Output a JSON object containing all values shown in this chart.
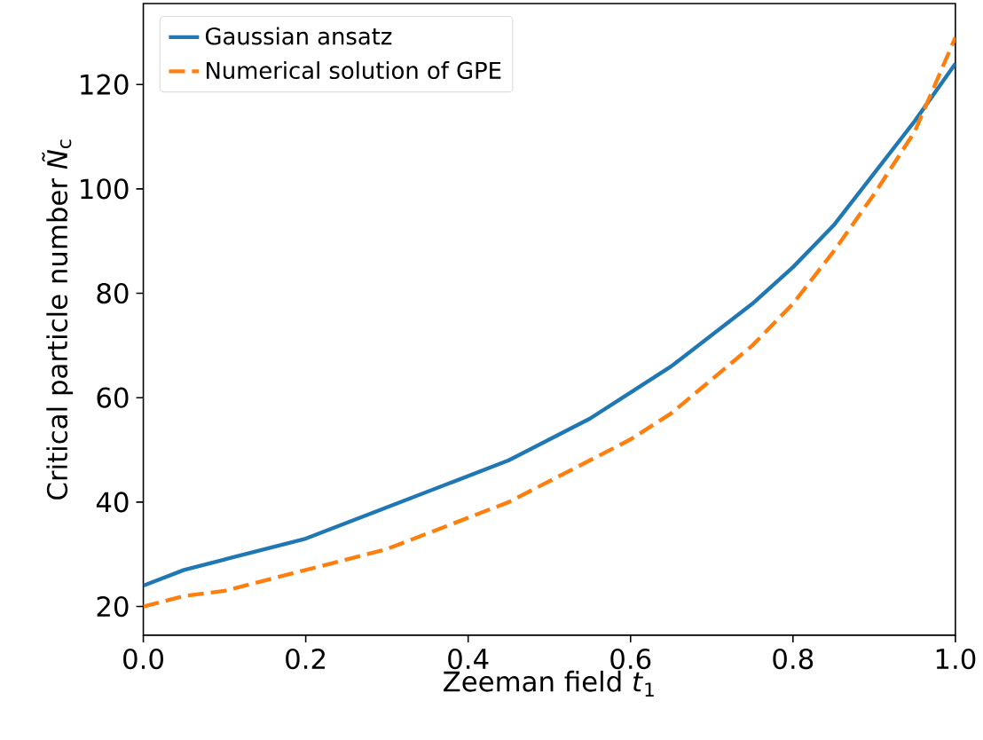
{
  "chart_data": {
    "type": "line",
    "xlabel": "Zeeman field *t*$_{1}$",
    "ylabel": "Critical particle number *Ñ*$_{c}$",
    "xlim": [
      0,
      1
    ],
    "ylim": [
      14.5,
      135.5
    ],
    "xticks": [
      {
        "value": 0,
        "label": "0.0"
      },
      {
        "value": 0.2,
        "label": "0.2"
      },
      {
        "value": 0.4,
        "label": "0.4"
      },
      {
        "value": 0.6,
        "label": "0.6"
      },
      {
        "value": 0.8,
        "label": "0.8"
      },
      {
        "value": 1,
        "label": "1.0"
      }
    ],
    "yticks": [
      20,
      40,
      60,
      80,
      100,
      120
    ],
    "legend": "top left",
    "grid": false,
    "series": [
      {
        "name": "Gaussian ansatz",
        "color": "#1f77b4",
        "line_style": "solid",
        "x": [
          0,
          0.05,
          0.1,
          0.2,
          0.3,
          0.4,
          0.45,
          0.55,
          0.6,
          0.65,
          0.75,
          0.8,
          0.85,
          0.9,
          0.95,
          1.0
        ],
        "values": [
          24,
          27,
          29,
          33,
          39,
          45,
          48,
          56,
          61,
          66,
          78,
          85,
          93,
          103,
          113,
          124
        ]
      },
      {
        "name": "Numerical solution of GPE",
        "color": "#ff7f0e",
        "line_style": "dashed",
        "x": [
          0,
          0.05,
          0.1,
          0.2,
          0.3,
          0.4,
          0.45,
          0.55,
          0.6,
          0.65,
          0.75,
          0.8,
          0.85,
          0.9,
          0.95,
          1.0
        ],
        "values": [
          20,
          22,
          23,
          27,
          31,
          37,
          40,
          48,
          52,
          57,
          70,
          78,
          88,
          99,
          111,
          129
        ]
      }
    ]
  }
}
